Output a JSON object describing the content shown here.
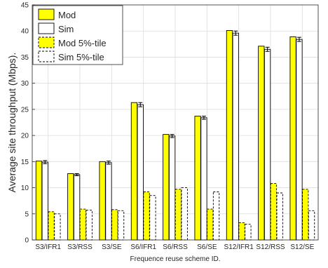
{
  "chart_data": {
    "type": "bar",
    "title": "",
    "xlabel": "Frequence reuse scheme ID.",
    "ylabel": "Average site throughput (Mbps).",
    "ylim": [
      0,
      45
    ],
    "yticks": [
      0,
      5,
      10,
      15,
      20,
      25,
      30,
      35,
      40,
      45
    ],
    "grid": true,
    "legend_position": "top-left",
    "categories": [
      "S3/IFR1",
      "S3/RSS",
      "S3/SE",
      "S6/IFR1",
      "S6/RSS",
      "S6/SE",
      "S12/IFR1",
      "S12/RSS",
      "S12/SE"
    ],
    "series": [
      {
        "name": "Mod",
        "style": "solid",
        "fill": "#ffff00",
        "values": [
          15.1,
          12.7,
          15.0,
          26.3,
          20.2,
          23.7,
          40.1,
          37.1,
          38.9
        ]
      },
      {
        "name": "Sim",
        "style": "solid",
        "fill": "#ffffff",
        "values": [
          14.9,
          12.5,
          14.8,
          25.9,
          19.9,
          23.4,
          39.6,
          36.5,
          38.4
        ],
        "error": [
          0.3,
          0.2,
          0.3,
          0.4,
          0.3,
          0.3,
          0.4,
          0.4,
          0.4
        ]
      },
      {
        "name": "Mod 5%-tile",
        "style": "dashed",
        "fill": "#ffff00",
        "values": [
          5.4,
          5.9,
          5.8,
          9.2,
          9.7,
          5.9,
          3.3,
          10.8,
          9.7
        ]
      },
      {
        "name": "Sim 5%-tile",
        "style": "dashed",
        "fill": "#ffffff",
        "values": [
          5.0,
          5.7,
          5.6,
          8.5,
          10.0,
          9.2,
          3.0,
          9.0,
          5.6
        ]
      }
    ]
  }
}
